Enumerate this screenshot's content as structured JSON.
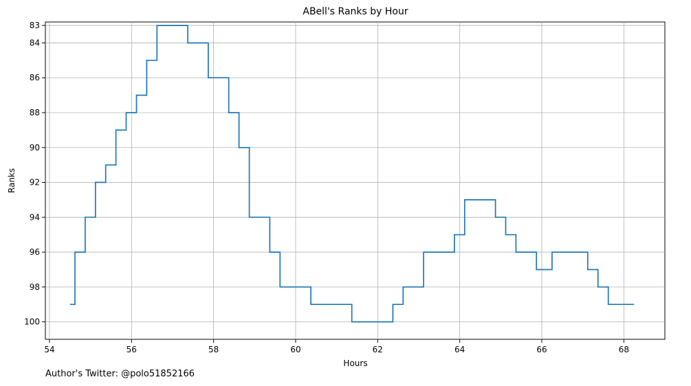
{
  "chart_data": {
    "type": "line",
    "step": "post",
    "title": "ABell's Ranks by Hour",
    "xlabel": "Hours",
    "ylabel": "Ranks",
    "xlim": [
      53.9,
      69.0
    ],
    "ylim": [
      101.0,
      82.8
    ],
    "y_inverted": true,
    "grid": true,
    "x_ticks": [
      54,
      56,
      58,
      60,
      62,
      64,
      66,
      68
    ],
    "y_ticks": [
      83,
      84,
      86,
      88,
      90,
      92,
      94,
      96,
      98,
      100
    ],
    "series": [
      {
        "color": "#1f77b4",
        "points": [
          [
            54.5,
            99
          ],
          [
            54.62,
            96
          ],
          [
            54.87,
            94
          ],
          [
            55.12,
            92
          ],
          [
            55.37,
            91
          ],
          [
            55.62,
            89
          ],
          [
            55.87,
            88
          ],
          [
            56.12,
            87
          ],
          [
            56.37,
            85
          ],
          [
            56.62,
            83
          ],
          [
            57.37,
            84
          ],
          [
            57.87,
            86
          ],
          [
            58.37,
            88
          ],
          [
            58.62,
            90
          ],
          [
            58.87,
            94
          ],
          [
            59.37,
            96
          ],
          [
            59.62,
            98
          ],
          [
            60.37,
            99
          ],
          [
            61.37,
            100
          ],
          [
            62.37,
            99
          ],
          [
            62.62,
            98
          ],
          [
            63.12,
            96
          ],
          [
            63.87,
            95
          ],
          [
            64.12,
            93
          ],
          [
            64.87,
            94
          ],
          [
            65.12,
            95
          ],
          [
            65.37,
            96
          ],
          [
            65.87,
            97
          ],
          [
            66.25,
            96
          ],
          [
            67.12,
            97
          ],
          [
            67.37,
            98
          ],
          [
            67.62,
            99
          ],
          [
            68.25,
            99
          ]
        ]
      }
    ]
  },
  "footer": {
    "text": "Author's Twitter: @polo51852166"
  }
}
